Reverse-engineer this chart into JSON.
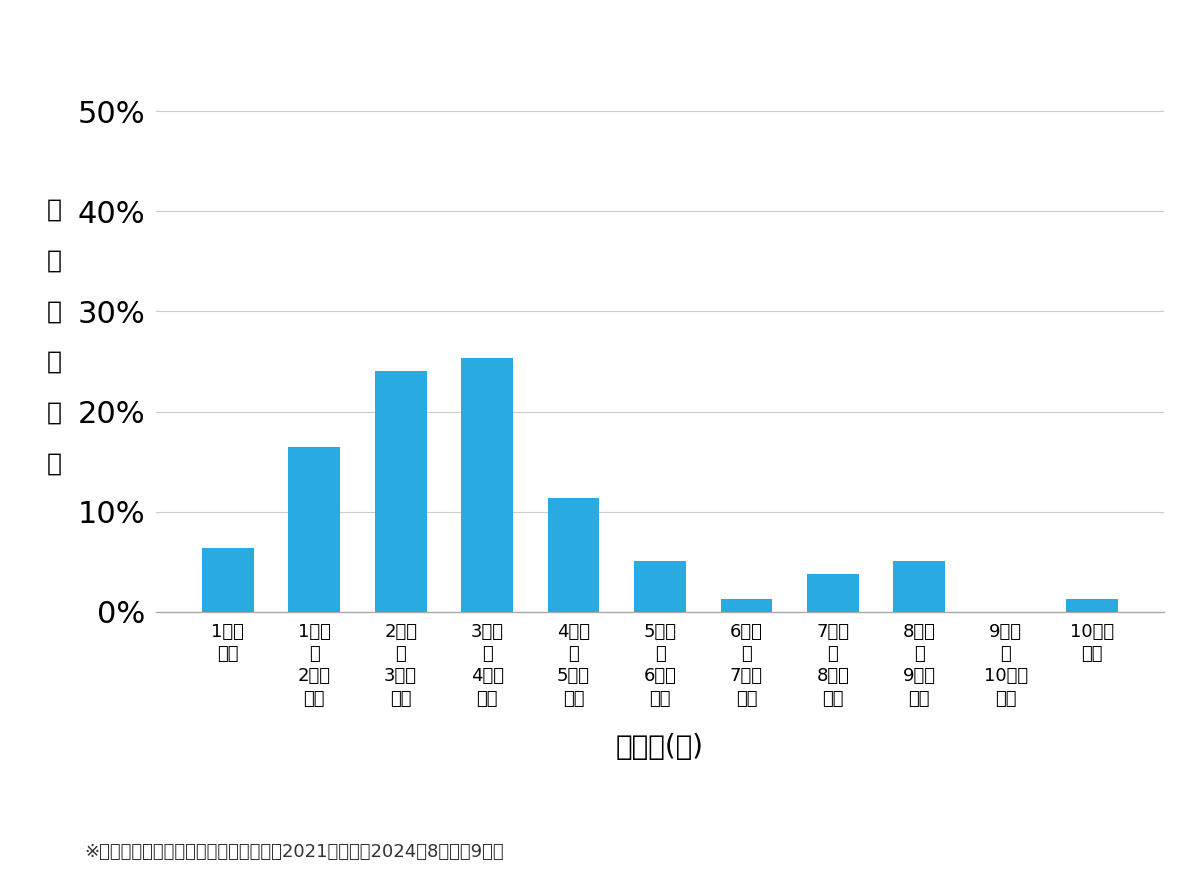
{
  "categories": [
    "1万円\n未満",
    "1万円\n～\n2万円\n未満",
    "2万円\n～\n3万円\n未満",
    "3万円\n～\n4万円\n未満",
    "4万円\n～\n5万円\n未満",
    "5万円\n～\n6万円\n未満",
    "6万円\n～\n7万円\n未満",
    "7万円\n～\n8万円\n未満",
    "8万円\n～\n9万円\n未満",
    "9万円\n～\n10万円\n未満",
    "10万円\n以上"
  ],
  "values": [
    6.329113924050633,
    16.455696202531644,
    24.050632911392405,
    25.31645569620253,
    11.39240506329114,
    5.063291139240506,
    1.2658227848101267,
    3.7974683544303796,
    5.063291139240506,
    0.0,
    1.2658227848101267
  ],
  "bar_color": "#29ABE2",
  "ylabel_chars": [
    "価",
    "格",
    "帯",
    "の",
    "割",
    "合"
  ],
  "xlabel": "価格帯(円)",
  "yticks": [
    0,
    10,
    20,
    30,
    40,
    50
  ],
  "ylim": [
    0,
    55
  ],
  "footnote": "※弊社受付の案件を対象に集計（期間：2021年１月～2024年8月、桹9件）",
  "background_color": "#ffffff",
  "ylabel_fontsize": 18,
  "xlabel_fontsize": 20,
  "ytick_fontsize": 22,
  "xtick_fontsize": 13,
  "footnote_fontsize": 13
}
